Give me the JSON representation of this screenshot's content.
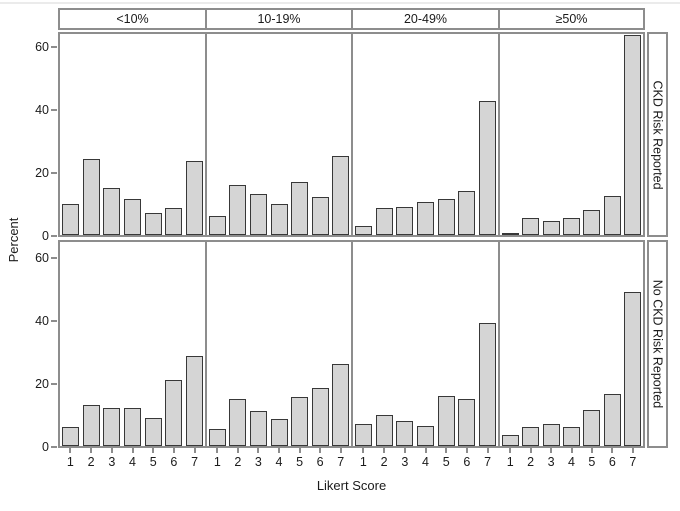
{
  "chart_data": {
    "type": "bar",
    "title": "",
    "xlabel": "Likert Score",
    "ylabel": "Percent",
    "ylim": [
      0,
      65
    ],
    "y_ticks": [
      0,
      20,
      40,
      60
    ],
    "categories": [
      "1",
      "2",
      "3",
      "4",
      "5",
      "6",
      "7"
    ],
    "grid": "off",
    "legend_position": "none",
    "facets": {
      "column_headers": [
        "<10%",
        "10-19%",
        "20-49%",
        "≥50%"
      ],
      "row_headers": [
        "CKD Risk Reported",
        "No CKD Risk Reported"
      ]
    },
    "panels": [
      {
        "row_label": "CKD Risk Reported",
        "column_label": "<10%",
        "values": [
          10,
          24,
          15,
          11.5,
          7,
          8.5,
          23.5
        ]
      },
      {
        "row_label": "CKD Risk Reported",
        "column_label": "10-19%",
        "values": [
          6,
          16,
          13,
          10,
          17,
          12,
          25
        ]
      },
      {
        "row_label": "CKD Risk Reported",
        "column_label": "20-49%",
        "values": [
          3,
          8.5,
          9,
          10.5,
          11.5,
          14,
          42.5
        ]
      },
      {
        "row_label": "CKD Risk Reported",
        "column_label": "≥50%",
        "values": [
          0.5,
          5.5,
          4.5,
          5.5,
          8,
          12.5,
          63.5
        ]
      },
      {
        "row_label": "No CKD Risk Reported",
        "column_label": "<10%",
        "values": [
          6,
          13,
          12,
          12,
          9,
          21,
          28.5
        ]
      },
      {
        "row_label": "No CKD Risk Reported",
        "column_label": "10-19%",
        "values": [
          5.5,
          15,
          11,
          8.5,
          15.5,
          18.5,
          26
        ]
      },
      {
        "row_label": "No CKD Risk Reported",
        "column_label": "20-49%",
        "values": [
          7,
          10,
          8,
          6.5,
          16,
          15,
          39
        ]
      },
      {
        "row_label": "No CKD Risk Reported",
        "column_label": "≥50%",
        "values": [
          3.5,
          6,
          7,
          6,
          11.5,
          16.5,
          49
        ]
      }
    ],
    "colors": {
      "bar_fill": "#d5d5d5",
      "bar_stroke": "#383838",
      "frame": "#8d8d8d",
      "text": "#1b1b1b",
      "background": "#ffffff"
    }
  }
}
